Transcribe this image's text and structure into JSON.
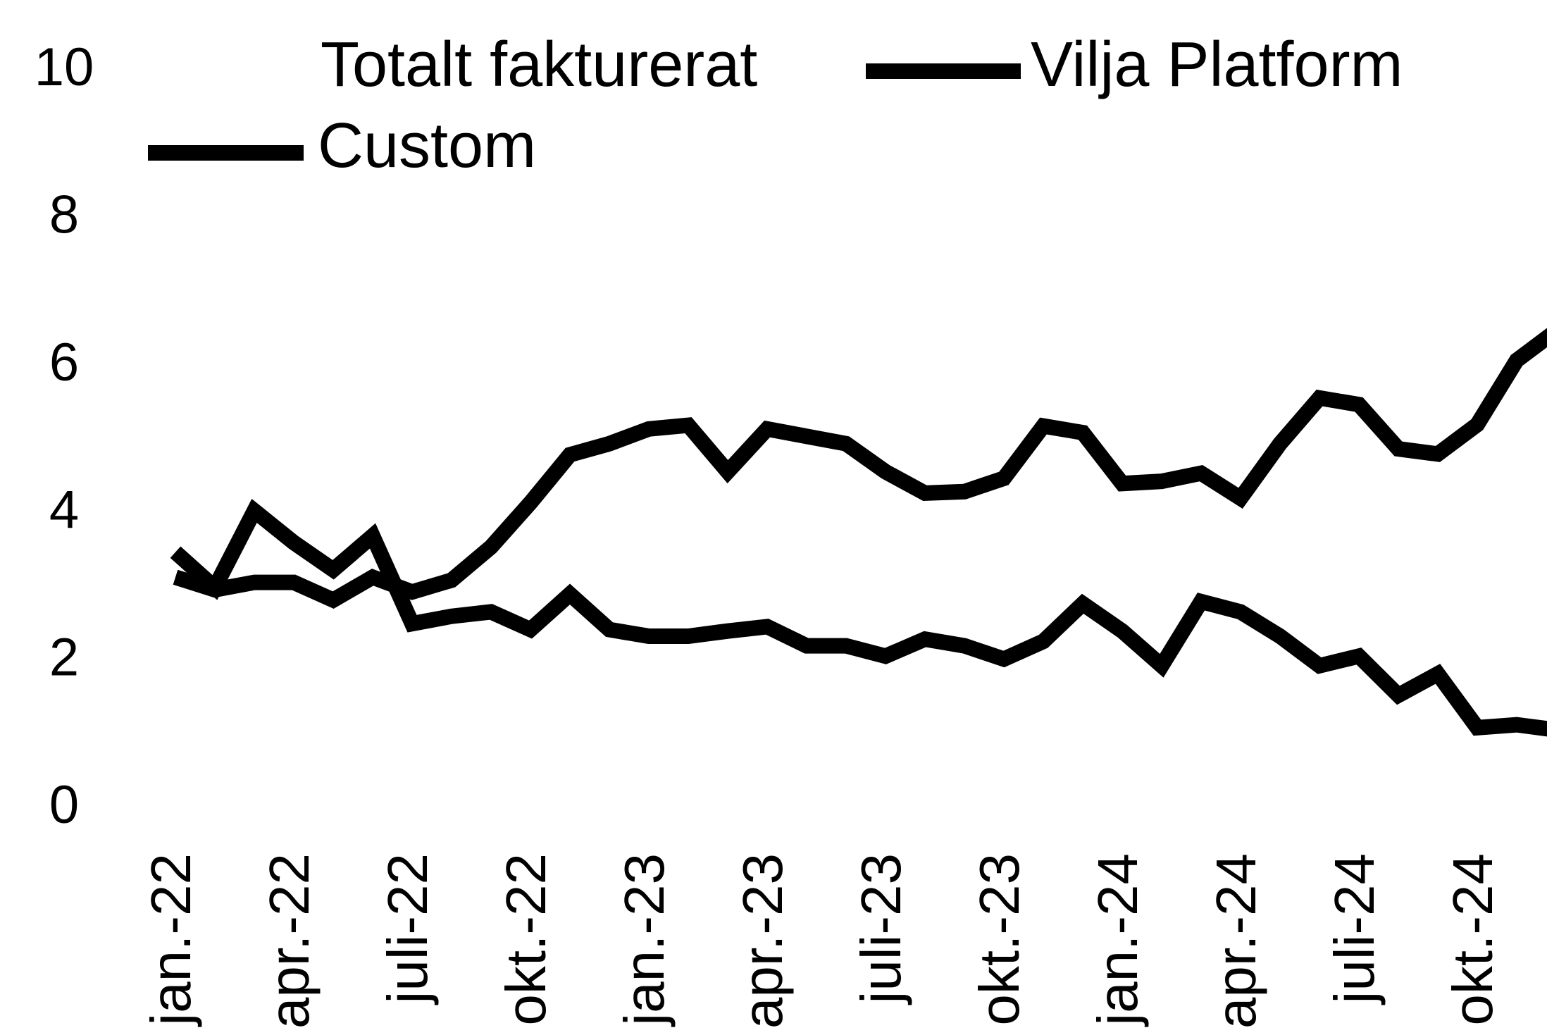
{
  "chart_data": {
    "type": "line",
    "categories": [
      "jan.-22",
      null,
      null,
      "apr.-22",
      null,
      null,
      "juli-22",
      null,
      null,
      "okt.-22",
      null,
      null,
      "jan.-23",
      null,
      null,
      "apr.-23",
      null,
      null,
      "juli-23",
      null,
      null,
      "okt.-23",
      null,
      null,
      "jan.-24",
      null,
      null,
      "apr.-24",
      null,
      null,
      "juli-24",
      null,
      null,
      "okt.-24",
      null,
      null
    ],
    "series": [
      {
        "name": "Totalt fakturerat",
        "color": "#ffffff",
        "values": [
          null,
          null,
          null,
          null,
          null,
          null,
          null,
          null,
          null,
          null,
          null,
          null,
          null,
          null,
          null,
          null,
          null,
          null,
          null,
          null,
          null,
          null,
          null,
          null,
          null,
          null,
          null,
          null,
          null,
          null,
          null,
          null,
          null,
          null,
          null,
          null
        ]
      },
      {
        "name": "Vilja Platform",
        "color": "#000000",
        "values": [
          3.14,
          2.97,
          3.07,
          3.07,
          2.83,
          3.14,
          2.94,
          3.1,
          3.55,
          4.15,
          4.8,
          4.95,
          5.15,
          5.2,
          4.57,
          5.15,
          5.05,
          4.95,
          4.57,
          4.28,
          4.3,
          4.48,
          5.19,
          5.1,
          4.41,
          4.44,
          4.55,
          4.21,
          4.95,
          5.57,
          5.48,
          4.88,
          4.81,
          5.21,
          6.08,
          6.48
        ]
      },
      {
        "name": "Custom",
        "color": "#000000",
        "values": [
          3.48,
          3.0,
          4.04,
          3.61,
          3.24,
          3.7,
          2.51,
          2.61,
          2.67,
          2.43,
          2.91,
          2.43,
          2.34,
          2.34,
          2.41,
          2.47,
          2.21,
          2.21,
          2.07,
          2.3,
          2.21,
          2.03,
          2.27,
          2.78,
          2.41,
          1.94,
          2.81,
          2.67,
          2.34,
          1.94,
          2.07,
          1.54,
          1.83,
          1.1,
          1.14,
          1.07
        ]
      }
    ],
    "ylim": [
      0,
      10
    ],
    "yticks": [
      0,
      2,
      4,
      6,
      8,
      10
    ],
    "grid": false
  }
}
